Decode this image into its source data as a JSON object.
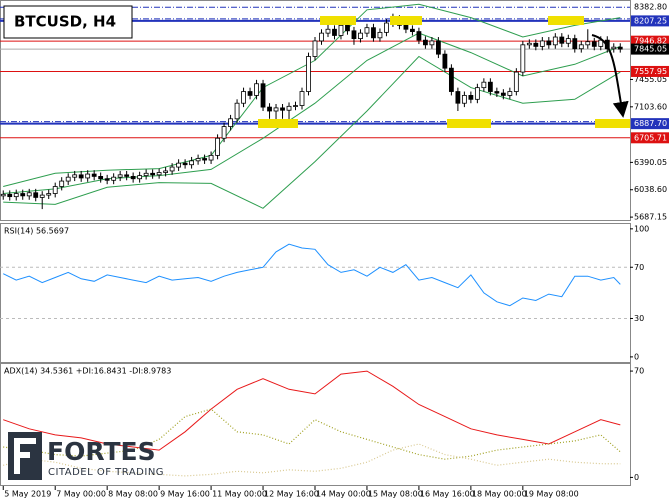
{
  "header": {
    "title": "BTCUSD, H4"
  },
  "logo": {
    "name": "FORTES",
    "tagline": "CITADEL OF TRADING"
  },
  "chart_data": [
    {
      "type": "candlestick",
      "xlim": [
        -0.5,
        96.5
      ],
      "ylim": [
        5650,
        8450
      ],
      "yticks": [
        5687.15,
        {
          "value": 6038.6,
          "label": "6038.60"
        },
        6390.05,
        {
          "value": 7103.6,
          "label": "7103.60"
        },
        7455.05
      ],
      "up_color": "#ffffff",
      "down_color": "#000000",
      "levels": [
        {
          "value": 8382.8,
          "label": "8382.80",
          "color": "#2233bb",
          "style": "dashdot"
        },
        {
          "value": 8207.25,
          "color": "#2233bb",
          "style": "thick"
        },
        {
          "value": 7946.82,
          "color": "#dd1111",
          "style": "solid"
        },
        {
          "value": 7845.05,
          "color": "#000000",
          "style": "current"
        },
        {
          "value": 7557.95,
          "color": "#dd1111",
          "style": "solid"
        },
        {
          "value": 6887.7,
          "label": "6887.70",
          "color": "#2233bb",
          "style": "thick"
        },
        {
          "value": 6705.71,
          "color": "#dd1111",
          "style": "solid"
        }
      ],
      "bands": {
        "color": "#2e9e4f",
        "x": [
          0,
          8,
          16,
          24,
          32,
          40,
          48,
          56,
          64,
          72,
          80,
          88,
          95
        ],
        "upper": [
          6080,
          6250,
          6290,
          6310,
          6480,
          7350,
          7700,
          8350,
          8420,
          8250,
          8000,
          8150,
          8250
        ],
        "middle": [
          5990,
          6050,
          6180,
          6220,
          6300,
          6700,
          7150,
          7700,
          8050,
          7800,
          7500,
          7650,
          7880
        ],
        "lower": [
          5880,
          5850,
          6070,
          6130,
          6120,
          5800,
          6400,
          7050,
          7750,
          7350,
          7150,
          7200,
          7550
        ]
      },
      "ohlc": [
        [
          5960,
          6030,
          5910,
          5980
        ],
        [
          5980,
          6030,
          5900,
          5950
        ],
        [
          5950,
          6040,
          5900,
          5990
        ],
        [
          5990,
          6040,
          5910,
          5960
        ],
        [
          5960,
          6050,
          5910,
          6000
        ],
        [
          6000,
          6050,
          5890,
          5940
        ],
        [
          5940,
          6020,
          5790,
          5970
        ],
        [
          5970,
          6040,
          5920,
          5990
        ],
        [
          5990,
          6130,
          5940,
          6080
        ],
        [
          6080,
          6200,
          6030,
          6150
        ],
        [
          6150,
          6250,
          6100,
          6200
        ],
        [
          6200,
          6280,
          6150,
          6230
        ],
        [
          6230,
          6280,
          6140,
          6190
        ],
        [
          6190,
          6290,
          6140,
          6240
        ],
        [
          6240,
          6290,
          6160,
          6210
        ],
        [
          6210,
          6260,
          6130,
          6180
        ],
        [
          6180,
          6230,
          6110,
          6160
        ],
        [
          6160,
          6250,
          6110,
          6200
        ],
        [
          6200,
          6280,
          6150,
          6230
        ],
        [
          6230,
          6280,
          6160,
          6210
        ],
        [
          6210,
          6260,
          6130,
          6180
        ],
        [
          6180,
          6270,
          6130,
          6220
        ],
        [
          6220,
          6300,
          6170,
          6250
        ],
        [
          6250,
          6300,
          6180,
          6230
        ],
        [
          6230,
          6310,
          6180,
          6260
        ],
        [
          6260,
          6330,
          6210,
          6280
        ],
        [
          6280,
          6380,
          6230,
          6330
        ],
        [
          6330,
          6430,
          6280,
          6380
        ],
        [
          6380,
          6430,
          6310,
          6360
        ],
        [
          6360,
          6460,
          6310,
          6410
        ],
        [
          6410,
          6490,
          6360,
          6440
        ],
        [
          6440,
          6490,
          6370,
          6420
        ],
        [
          6420,
          6530,
          6370,
          6480
        ],
        [
          6480,
          6750,
          6430,
          6700
        ],
        [
          6700,
          6900,
          6650,
          6850
        ],
        [
          6850,
          7000,
          6800,
          6950
        ],
        [
          6950,
          7200,
          6900,
          7150
        ],
        [
          7150,
          7350,
          7100,
          7300
        ],
        [
          7300,
          7350,
          7200,
          7250
        ],
        [
          7250,
          7450,
          7200,
          7400
        ],
        [
          7400,
          7450,
          7050,
          7100
        ],
        [
          7100,
          7150,
          6950,
          7050
        ],
        [
          7050,
          7140,
          6900,
          7090
        ],
        [
          7090,
          7140,
          6950,
          7060
        ],
        [
          7060,
          7160,
          6900,
          7110
        ],
        [
          7110,
          7170,
          7060,
          7120
        ],
        [
          7120,
          7350,
          7070,
          7300
        ],
        [
          7300,
          7800,
          7250,
          7750
        ],
        [
          7750,
          8000,
          7700,
          7950
        ],
        [
          7950,
          8100,
          7900,
          8050
        ],
        [
          8050,
          8200,
          8000,
          8100
        ],
        [
          8100,
          8150,
          7970,
          8020
        ],
        [
          8020,
          8200,
          7970,
          8150
        ],
        [
          8150,
          8200,
          8030,
          8080
        ],
        [
          8080,
          8130,
          7900,
          7980
        ],
        [
          7980,
          8100,
          7930,
          8050
        ],
        [
          8050,
          8170,
          8000,
          8120
        ],
        [
          8120,
          8170,
          7940,
          7990
        ],
        [
          7990,
          8110,
          7940,
          8060
        ],
        [
          8060,
          8230,
          8010,
          8180
        ],
        [
          8180,
          8300,
          8130,
          8230
        ],
        [
          8230,
          8280,
          8100,
          8150
        ],
        [
          8150,
          8200,
          8050,
          8100
        ],
        [
          8100,
          8150,
          8020,
          8070
        ],
        [
          8070,
          8120,
          7910,
          7960
        ],
        [
          7960,
          8010,
          7850,
          7900
        ],
        [
          7900,
          8000,
          7850,
          7950
        ],
        [
          7950,
          8000,
          7730,
          7780
        ],
        [
          7780,
          7830,
          7550,
          7600
        ],
        [
          7600,
          7650,
          7250,
          7300
        ],
        [
          7300,
          7350,
          7050,
          7150
        ],
        [
          7150,
          7300,
          7100,
          7250
        ],
        [
          7250,
          7300,
          7150,
          7200
        ],
        [
          7200,
          7400,
          7150,
          7350
        ],
        [
          7350,
          7470,
          7300,
          7420
        ],
        [
          7420,
          7470,
          7250,
          7300
        ],
        [
          7300,
          7350,
          7230,
          7280
        ],
        [
          7280,
          7330,
          7200,
          7250
        ],
        [
          7250,
          7350,
          7200,
          7300
        ],
        [
          7300,
          7600,
          7250,
          7550
        ],
        [
          7550,
          7950,
          7500,
          7900
        ],
        [
          7900,
          7970,
          7850,
          7920
        ],
        [
          7920,
          7970,
          7830,
          7880
        ],
        [
          7880,
          8000,
          7830,
          7950
        ],
        [
          7950,
          8000,
          7850,
          7900
        ],
        [
          7900,
          8050,
          7850,
          8000
        ],
        [
          8000,
          8050,
          7870,
          7920
        ],
        [
          7920,
          8030,
          7870,
          7980
        ],
        [
          7980,
          8030,
          7800,
          7850
        ],
        [
          7850,
          7950,
          7800,
          7900
        ],
        [
          7900,
          8100,
          7850,
          7940
        ],
        [
          7940,
          7990,
          7830,
          7880
        ],
        [
          7880,
          8010,
          7830,
          7960
        ],
        [
          7960,
          8010,
          7800,
          7850
        ],
        [
          7850,
          7920,
          7800,
          7870
        ],
        [
          7870,
          7920,
          7800,
          7845
        ]
      ]
    },
    {
      "type": "line",
      "label": "RSI(14) 56.5697",
      "xlim": [
        -0.5,
        96.5
      ],
      "ylim": [
        -4,
        103
      ],
      "yticks": [
        0,
        30,
        70,
        100
      ],
      "levels": [
        30,
        70
      ],
      "level_color": "#bbbbbb",
      "x": [
        0,
        2,
        4,
        6,
        8,
        10,
        12,
        14,
        16,
        18,
        20,
        22,
        24,
        26,
        28,
        30,
        32,
        34,
        36,
        38,
        40,
        42,
        44,
        46,
        48,
        50,
        52,
        54,
        56,
        58,
        60,
        62,
        64,
        66,
        68,
        70,
        72,
        74,
        76,
        78,
        80,
        82,
        84,
        86,
        88,
        90,
        92,
        94,
        95
      ],
      "series": [
        {
          "color": "#1e90ff",
          "style": "solid",
          "values": [
            65,
            60,
            63,
            58,
            62,
            66,
            61,
            59,
            64,
            62,
            60,
            58,
            63,
            60,
            61,
            62,
            59,
            63,
            66,
            68,
            70,
            82,
            88,
            85,
            84,
            72,
            66,
            68,
            63,
            70,
            66,
            72,
            60,
            62,
            58,
            54,
            64,
            50,
            43,
            40,
            46,
            44,
            49,
            47,
            63,
            63,
            60,
            62,
            56.5697
          ]
        }
      ]
    },
    {
      "type": "line",
      "label": "ADX(14) 34.5361 +DI:16.8431 -DI:8.9783",
      "xlim": [
        -0.5,
        96.5
      ],
      "ylim": [
        -5,
        74
      ],
      "yticks": [
        0,
        70
      ],
      "x": [
        0,
        4,
        8,
        12,
        16,
        20,
        24,
        28,
        32,
        36,
        40,
        44,
        48,
        52,
        56,
        60,
        64,
        68,
        72,
        76,
        80,
        84,
        88,
        92,
        95
      ],
      "series": [
        {
          "color": "#e8191a",
          "style": "solid",
          "values": [
            38,
            32,
            28,
            26,
            22,
            20,
            18,
            30,
            45,
            58,
            65,
            58,
            55,
            68,
            70,
            60,
            48,
            40,
            32,
            28,
            25,
            22,
            30,
            38,
            34.5361
          ]
        },
        {
          "color": "#a0a020",
          "style": "dotted",
          "values": [
            20,
            18,
            15,
            14,
            16,
            18,
            25,
            40,
            45,
            30,
            28,
            22,
            38,
            30,
            25,
            20,
            15,
            12,
            14,
            18,
            20,
            22,
            24,
            28,
            16.8431
          ]
        },
        {
          "color": "#d8c890",
          "style": "dotted",
          "values": [
            8,
            12,
            10,
            6,
            4,
            3,
            2,
            1,
            2,
            4,
            3,
            5,
            4,
            6,
            10,
            18,
            22,
            15,
            12,
            8,
            10,
            12,
            10,
            9,
            8.9783
          ]
        }
      ],
      "xticks": [
        {
          "value": 0,
          "label": "5 May 2019"
        },
        {
          "value": 8,
          "label": "7 May 00:00"
        },
        {
          "value": 16,
          "label": "8 May 08:00"
        },
        {
          "value": 24,
          "label": "9 May 16:00"
        },
        {
          "value": 32,
          "label": "11 May 00:00"
        },
        {
          "value": 40,
          "label": "12 May 16:00"
        },
        {
          "value": 48,
          "label": "14 May 00:00"
        },
        {
          "value": 56,
          "label": "15 May 08:00"
        },
        {
          "value": 64,
          "label": "16 May 16:00"
        },
        {
          "value": 72,
          "label": "18 May 00:00"
        },
        {
          "value": 80,
          "label": "19 May 08:00"
        }
      ]
    }
  ]
}
